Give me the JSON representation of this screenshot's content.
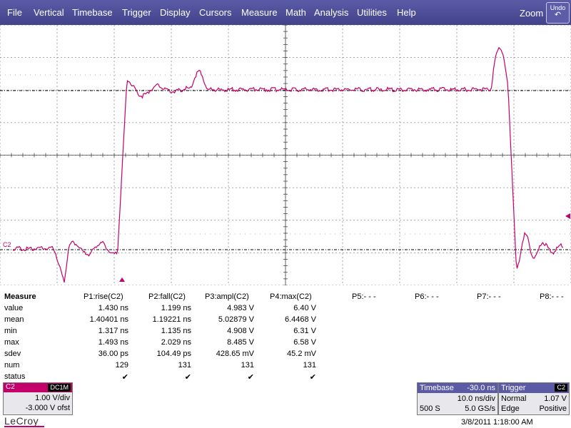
{
  "menu": {
    "items": [
      "File",
      "Vertical",
      "Timebase",
      "Trigger",
      "Display",
      "Cursors",
      "Measure",
      "Math",
      "Analysis",
      "Utilities",
      "Help"
    ],
    "zoom_label": "Zoom",
    "undo_label": "Undo",
    "undo_icon": "undo-arrow-icon"
  },
  "trace": {
    "channel_marker": "C2",
    "color": "#c4006a",
    "grid_color": "#000000"
  },
  "measure": {
    "title": "Measure",
    "row_labels": [
      "value",
      "mean",
      "min",
      "max",
      "sdev",
      "num",
      "status"
    ],
    "columns": [
      {
        "header": "P1:rise(C2)",
        "value": "1.430 ns",
        "mean": "1.40401 ns",
        "min": "1.317 ns",
        "max": "1.493 ns",
        "sdev": "36.00 ps",
        "num": "129",
        "status": "✔"
      },
      {
        "header": "P2:fall(C2)",
        "value": "1.199 ns",
        "mean": "1.19221 ns",
        "min": "1.135 ns",
        "max": "2.029 ns",
        "sdev": "104.49 ps",
        "num": "131",
        "status": "✔"
      },
      {
        "header": "P3:ampl(C2)",
        "value": "4.983 V",
        "mean": "5.02879 V",
        "min": "4.908 V",
        "max": "8.485 V",
        "sdev": "428.65 mV",
        "num": "131",
        "status": "✔"
      },
      {
        "header": "P4:max(C2)",
        "value": "6.40 V",
        "mean": "6.4468 V",
        "min": "6.31 V",
        "max": "6.58 V",
        "sdev": "45.2 mV",
        "num": "131",
        "status": "✔"
      },
      {
        "header": "P5:- - -"
      },
      {
        "header": "P6:- - -"
      },
      {
        "header": "P7:- - -"
      },
      {
        "header": "P8:- - -"
      }
    ]
  },
  "channel": {
    "name": "C2",
    "coupling": "DC1M",
    "vdiv": "1.00 V/div",
    "offset": "-3.000 V ofst"
  },
  "timebase": {
    "title": "Timebase",
    "delay": "-30.0 ns",
    "nsdiv": "10.0 ns/div",
    "samples": "500 S",
    "rate": "5.0 GS/s"
  },
  "trigger": {
    "title": "Trigger",
    "source": "C2",
    "mode": "Normal",
    "level": "1.07 V",
    "type": "Edge",
    "slope": "Positive"
  },
  "brand": "LeCroy",
  "datetime": "3/8/2011 1:18:00 AM"
}
